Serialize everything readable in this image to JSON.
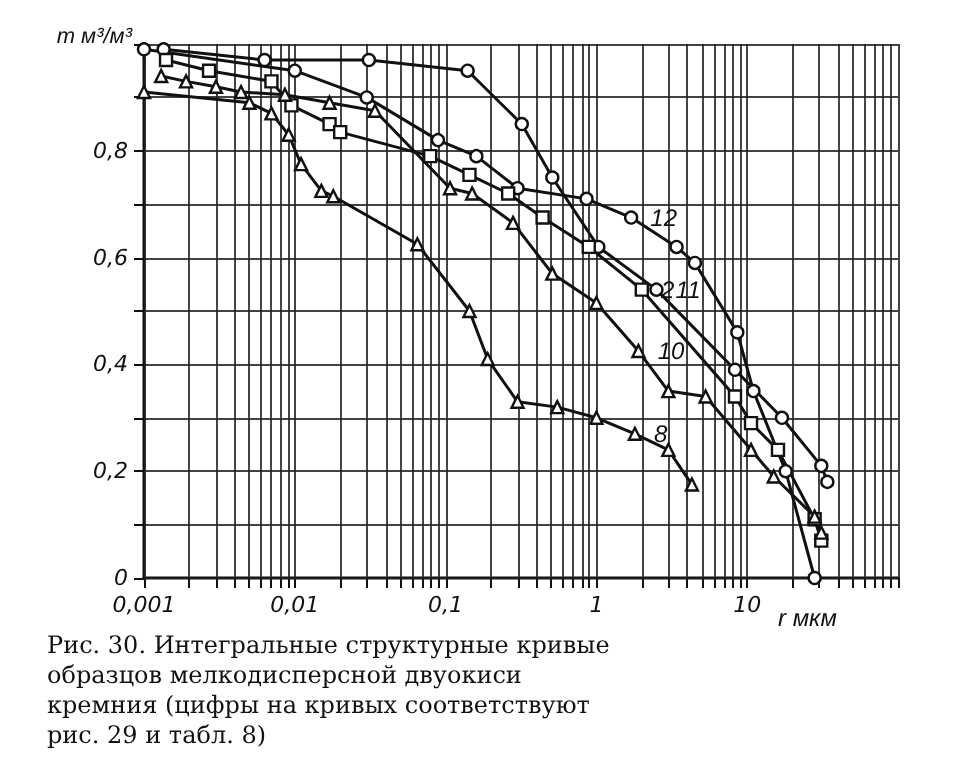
{
  "chart_data": {
    "type": "line",
    "xlabel": "r мкм",
    "ylabel": "m м³/м³",
    "log": "x",
    "grid": true,
    "xlim": [
      0.001,
      100
    ],
    "ylim": [
      0,
      1
    ],
    "xticks": [
      {
        "value": 0.001,
        "label": "0,001"
      },
      {
        "value": 0.002,
        "label": null
      },
      {
        "value": 0.003,
        "label": null
      },
      {
        "value": 0.004,
        "label": null
      },
      {
        "value": 0.005,
        "label": null
      },
      {
        "value": 0.006,
        "label": null
      },
      {
        "value": 0.007,
        "label": null
      },
      {
        "value": 0.008,
        "label": null
      },
      {
        "value": 0.009,
        "label": null
      },
      {
        "value": 0.01,
        "label": "0,01"
      },
      {
        "value": 0.02,
        "label": null
      },
      {
        "value": 0.03,
        "label": null
      },
      {
        "value": 0.04,
        "label": null
      },
      {
        "value": 0.05,
        "label": null
      },
      {
        "value": 0.06,
        "label": null
      },
      {
        "value": 0.07,
        "label": null
      },
      {
        "value": 0.08,
        "label": null
      },
      {
        "value": 0.09,
        "label": null
      },
      {
        "value": 0.1,
        "label": "0,1"
      },
      {
        "value": 0.2,
        "label": null
      },
      {
        "value": 0.3,
        "label": null
      },
      {
        "value": 0.4,
        "label": null
      },
      {
        "value": 0.5,
        "label": null
      },
      {
        "value": 0.6,
        "label": null
      },
      {
        "value": 0.7,
        "label": null
      },
      {
        "value": 0.8,
        "label": null
      },
      {
        "value": 0.9,
        "label": null
      },
      1,
      {
        "value": 2,
        "label": null
      },
      {
        "value": 3,
        "label": null
      },
      {
        "value": 4,
        "label": null
      },
      {
        "value": 5,
        "label": null
      },
      {
        "value": 6,
        "label": null
      },
      {
        "value": 7,
        "label": null
      },
      {
        "value": 8,
        "label": null
      },
      {
        "value": 9,
        "label": null
      },
      10,
      {
        "value": 20,
        "label": null
      },
      {
        "value": 30,
        "label": null
      },
      {
        "value": 40,
        "label": null
      },
      {
        "value": 50,
        "label": null
      },
      {
        "value": 60,
        "label": null
      },
      {
        "value": 70,
        "label": null
      },
      {
        "value": 80,
        "label": null
      },
      {
        "value": 90,
        "label": null
      },
      {
        "value": 100,
        "label": null
      }
    ],
    "yticks": [
      0,
      {
        "value": 0.1,
        "label": null
      },
      {
        "value": 0.2,
        "label": "0,2"
      },
      {
        "value": 0.3,
        "label": null
      },
      {
        "value": 0.4,
        "label": "0,4"
      },
      {
        "value": 0.5,
        "label": null
      },
      {
        "value": 0.6,
        "label": "0,6"
      },
      {
        "value": 0.7,
        "label": null
      },
      {
        "value": 0.8,
        "label": "0,8"
      },
      {
        "value": 0.9,
        "label": null
      },
      {
        "value": 1,
        "label": null
      }
    ],
    "series": [
      {
        "name": "12",
        "color": "#111111",
        "marker": "circle",
        "x": [
          0.001,
          0.01,
          0.03,
          0.089,
          0.16,
          0.3,
          0.86,
          1.7,
          3.4,
          4.5,
          8.6,
          11,
          18,
          28
        ],
        "values": [
          0.99,
          0.95,
          0.9,
          0.82,
          0.79,
          0.73,
          0.71,
          0.675,
          0.62,
          0.59,
          0.46,
          0.35,
          0.2,
          0
        ]
      },
      {
        "name": "11",
        "color": "#111111",
        "marker": "circle",
        "x": [
          0.00135,
          0.0063,
          0.031,
          0.14,
          0.32,
          0.51,
          1.03,
          2.5,
          8.3,
          17,
          31,
          34
        ],
        "values": [
          0.99,
          0.97,
          0.97,
          0.95,
          0.85,
          0.75,
          0.62,
          0.54,
          0.39,
          0.3,
          0.21,
          0.18
        ]
      },
      {
        "name": "2",
        "color": "#111111",
        "marker": "square",
        "x": [
          0.0014,
          0.0027,
          0.007,
          0.0095,
          0.017,
          0.02,
          0.079,
          0.144,
          0.26,
          0.44,
          0.89,
          2.0,
          8.3,
          10.6,
          16,
          28,
          31
        ],
        "values": [
          0.97,
          0.95,
          0.93,
          0.885,
          0.85,
          0.835,
          0.79,
          0.755,
          0.72,
          0.675,
          0.62,
          0.54,
          0.34,
          0.29,
          0.24,
          0.11,
          0.07
        ]
      },
      {
        "name": "10",
        "color": "#111111",
        "marker": "triangle",
        "x": [
          0.0013,
          0.0019,
          0.003,
          0.0044,
          0.0086,
          0.017,
          0.034,
          0.107,
          0.15,
          0.28,
          0.51,
          1.0,
          1.9,
          3.0,
          5.3,
          10.6,
          15,
          28,
          31
        ],
        "values": [
          0.94,
          0.93,
          0.92,
          0.91,
          0.905,
          0.89,
          0.875,
          0.73,
          0.72,
          0.665,
          0.57,
          0.515,
          0.425,
          0.35,
          0.34,
          0.24,
          0.19,
          0.115,
          0.085
        ]
      },
      {
        "name": "8",
        "color": "#111111",
        "marker": "triangle",
        "x": [
          0.001,
          0.005,
          0.007,
          0.0091,
          0.011,
          0.015,
          0.018,
          0.065,
          0.144,
          0.19,
          0.3,
          0.55,
          1.0,
          1.8,
          3.0,
          4.3
        ],
        "values": [
          0.91,
          0.89,
          0.87,
          0.83,
          0.775,
          0.725,
          0.715,
          0.625,
          0.5,
          0.41,
          0.33,
          0.32,
          0.3,
          0.27,
          0.24,
          0.175
        ]
      }
    ],
    "annotations": [
      "Рис. 30. Интегральные структурные кривые образцов мелкодисперсной двуокиси кремния (цифры на кривых соответствуют рис. 29 и табл. 8)"
    ]
  }
}
